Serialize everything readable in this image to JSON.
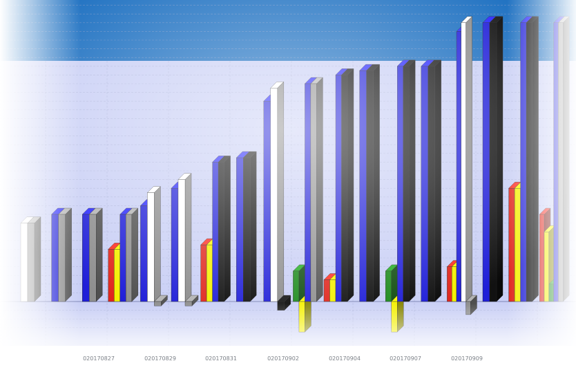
{
  "colors": {
    "header": "#1a6ec0",
    "plot_bg": "#c9cff5",
    "grid": "#9aa2c8",
    "blue": "#1f1ed8",
    "black": "#111111",
    "gray": "#8f8f8f",
    "white": "#ffffff",
    "red": "#e0251c",
    "yellow": "#f4f000",
    "green": "#1c8a1c",
    "olive": "#c8c23a"
  },
  "chart_data": {
    "type": "bar",
    "style": "3d-clustered",
    "grid": true,
    "legend": "none",
    "xlabel": "",
    "ylabel": "",
    "ylim": [
      -4,
      34
    ],
    "tick_labels": [
      "020170827",
      "020170829",
      "020170831",
      "020170902",
      "020170904",
      "020170907",
      "020170909"
    ],
    "groups": [
      {
        "bars": [
          {
            "color": "white",
            "value": 9
          },
          {
            "color": "gray",
            "value": 9
          }
        ]
      },
      {
        "bars": [
          {
            "color": "blue",
            "value": 10
          },
          {
            "color": "gray",
            "value": 10
          }
        ]
      },
      {
        "bars": [
          {
            "color": "blue",
            "value": 10
          },
          {
            "color": "gray",
            "value": 10
          }
        ]
      },
      {
        "bars": [
          {
            "color": "red",
            "value": 6
          },
          {
            "color": "yellow",
            "value": 6
          },
          {
            "color": "blue",
            "value": 10
          },
          {
            "color": "gray",
            "value": 10
          }
        ]
      },
      {
        "bars": [
          {
            "color": "blue",
            "value": 11
          },
          {
            "color": "white",
            "value": 12.5
          },
          {
            "color": "gray",
            "value": -0.5
          }
        ]
      },
      {
        "bars": [
          {
            "color": "blue",
            "value": 13
          },
          {
            "color": "white",
            "value": 14
          },
          {
            "color": "gray",
            "value": -0.5
          }
        ]
      },
      {
        "bars": [
          {
            "color": "red",
            "value": 6.5
          },
          {
            "color": "yellow",
            "value": 6.5
          },
          {
            "color": "blue",
            "value": 16
          },
          {
            "color": "black",
            "value": 16
          }
        ]
      },
      {
        "bars": [
          {
            "color": "blue",
            "value": 16.5
          },
          {
            "color": "black",
            "value": 16.5
          }
        ]
      },
      {
        "bars": [
          {
            "color": "blue",
            "value": 23
          },
          {
            "color": "white",
            "value": 24.5
          },
          {
            "color": "black",
            "value": -1
          }
        ]
      },
      {
        "bars": [
          {
            "color": "green",
            "value": 3.5
          },
          {
            "color": "yellow",
            "value": -3.5
          },
          {
            "color": "blue",
            "value": 25
          },
          {
            "color": "gray",
            "value": 25
          }
        ]
      },
      {
        "bars": [
          {
            "color": "red",
            "value": 2.5
          },
          {
            "color": "yellow",
            "value": 2.5
          },
          {
            "color": "blue",
            "value": 26
          },
          {
            "color": "black",
            "value": 26
          }
        ]
      },
      {
        "bars": [
          {
            "color": "blue",
            "value": 26.5
          },
          {
            "color": "black",
            "value": 26.5
          }
        ]
      },
      {
        "bars": [
          {
            "color": "green",
            "value": 3.5
          },
          {
            "color": "yellow",
            "value": -3.5
          },
          {
            "color": "blue",
            "value": 27
          },
          {
            "color": "black",
            "value": 27
          }
        ]
      },
      {
        "bars": [
          {
            "color": "blue",
            "value": 27
          },
          {
            "color": "black",
            "value": 27
          }
        ]
      },
      {
        "bars": [
          {
            "color": "red",
            "value": 4
          },
          {
            "color": "yellow",
            "value": 4
          },
          {
            "color": "blue",
            "value": 31
          },
          {
            "color": "white",
            "value": 32
          },
          {
            "color": "gray",
            "value": -1.5
          }
        ]
      },
      {
        "bars": [
          {
            "color": "blue",
            "value": 32
          },
          {
            "color": "black",
            "value": 32
          }
        ]
      },
      {
        "bars": [
          {
            "color": "red",
            "value": 13
          },
          {
            "color": "yellow",
            "value": 13
          },
          {
            "color": "blue",
            "value": 32
          },
          {
            "color": "black",
            "value": 32
          }
        ]
      },
      {
        "bars": [
          {
            "color": "red",
            "value": 10
          },
          {
            "color": "yellow",
            "value": 8
          },
          {
            "color": "green",
            "value": 2
          },
          {
            "color": "blue",
            "value": 32
          },
          {
            "color": "gray",
            "value": 32
          }
        ]
      }
    ]
  }
}
